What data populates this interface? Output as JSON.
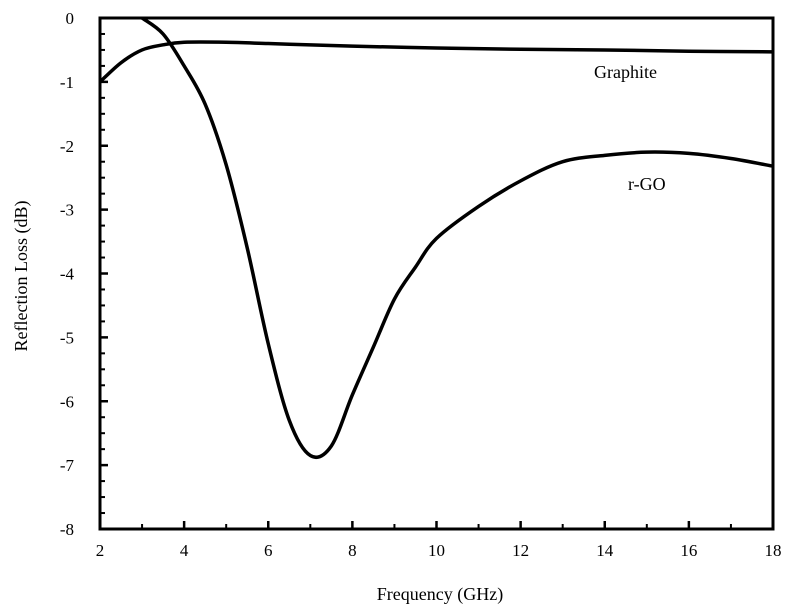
{
  "chart_data": {
    "type": "line",
    "title": "",
    "xlabel": "Frequency (GHz)",
    "ylabel": "Reflection Loss (dB)",
    "xlim": [
      2,
      18
    ],
    "ylim": [
      -8,
      0
    ],
    "xticks": [
      2,
      4,
      6,
      8,
      10,
      12,
      14,
      16,
      18
    ],
    "yticks": [
      0,
      -1,
      -2,
      -3,
      -4,
      -5,
      -6,
      -7,
      -8
    ],
    "grid": false,
    "legend": "none",
    "series": [
      {
        "name": "Graphite",
        "color": "#000000",
        "x": [
          2,
          2.5,
          3,
          3.5,
          4,
          5,
          6,
          7,
          8,
          10,
          12,
          14,
          16,
          18
        ],
        "y": [
          -1.0,
          -0.7,
          -0.5,
          -0.42,
          -0.38,
          -0.38,
          -0.4,
          -0.42,
          -0.44,
          -0.47,
          -0.49,
          -0.5,
          -0.52,
          -0.53
        ]
      },
      {
        "name": "r-GO",
        "color": "#000000",
        "x": [
          3.0,
          3.5,
          4,
          4.5,
          5,
          5.5,
          6,
          6.5,
          7,
          7.5,
          8,
          8.5,
          9,
          9.5,
          10,
          11,
          12,
          13,
          14,
          15,
          16,
          17,
          18
        ],
        "y": [
          0,
          -0.25,
          -0.75,
          -1.35,
          -2.3,
          -3.6,
          -5.1,
          -6.3,
          -6.85,
          -6.7,
          -5.9,
          -5.15,
          -4.4,
          -3.9,
          -3.45,
          -2.95,
          -2.55,
          -2.25,
          -2.15,
          -2.1,
          -2.12,
          -2.2,
          -2.32
        ]
      }
    ]
  }
}
